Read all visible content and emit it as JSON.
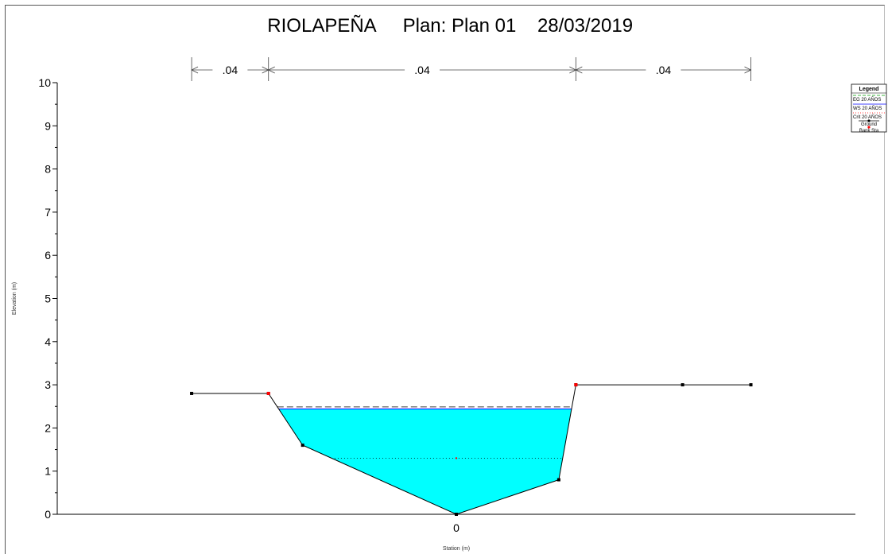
{
  "chart_data": {
    "type": "line",
    "title": "RIOLAPEÑA",
    "plan": "Plan: Plan 01",
    "date": "28/03/2019",
    "xlabel": "Station (m)",
    "ylabel": "Elevation (m)",
    "ylim": [
      0,
      10
    ],
    "y_ticks": [
      0,
      1,
      2,
      3,
      4,
      5,
      6,
      7,
      8,
      9,
      10
    ],
    "x_tick_labels": [
      "0"
    ],
    "manning_n": [
      ".04",
      ".04",
      ".04"
    ],
    "colors": {
      "water": "#00ffff",
      "eg": "#888888",
      "ws": "#0000ff",
      "crit": "#ff0000",
      "ground": "#000000",
      "bank": "#ff0000"
    },
    "series": [
      {
        "name": "Ground",
        "points": [
          {
            "x": -6.2,
            "y": 2.8
          },
          {
            "x": -4.4,
            "y": 2.8
          },
          {
            "x": -3.6,
            "y": 1.6
          },
          {
            "x": 0.0,
            "y": 0.0
          },
          {
            "x": 2.4,
            "y": 0.8
          },
          {
            "x": 2.8,
            "y": 3.0
          },
          {
            "x": 5.3,
            "y": 3.0
          },
          {
            "x": 6.9,
            "y": 3.0
          }
        ]
      },
      {
        "name": "Bank Sta",
        "points": [
          {
            "x": -4.4,
            "y": 2.8
          },
          {
            "x": 2.8,
            "y": 3.0
          }
        ]
      },
      {
        "name": "WS 20 AÑOS",
        "y": 2.44
      },
      {
        "name": "EG 20 AÑOS",
        "y": 2.49
      },
      {
        "name": "Crit 20 AÑOS",
        "y": 1.3
      }
    ],
    "legend": {
      "title": "Legend",
      "position": "top-right",
      "entries": [
        "EG 20 AÑOS",
        "WS 20 AÑOS",
        "Crit 20 AÑOS",
        "Ground",
        "Bank Sta"
      ]
    }
  }
}
